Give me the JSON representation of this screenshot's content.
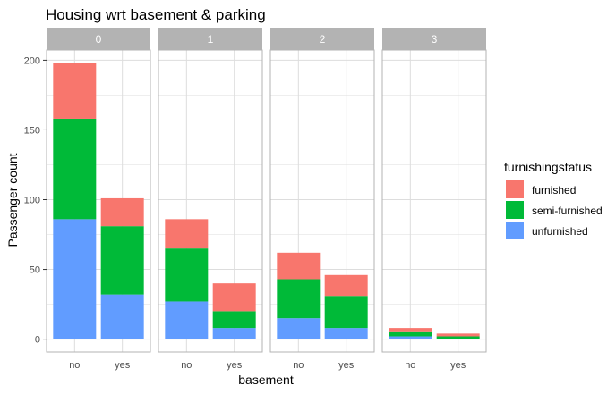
{
  "chart_data": {
    "type": "bar",
    "stacked": true,
    "title": "Housing wrt basement & parking",
    "xlabel": "basement",
    "ylabel": "Passenger count",
    "ylim": [
      0,
      205
    ],
    "yticks": [
      0,
      50,
      100,
      150,
      200
    ],
    "grid": true,
    "legend_position": "right",
    "legend_title": "furnishingstatus",
    "facet_labels": [
      "0",
      "1",
      "2",
      "3"
    ],
    "categories": [
      "no",
      "yes"
    ],
    "series": [
      {
        "name": "furnished",
        "color": "#F8766D",
        "values": [
          [
            40,
            20
          ],
          [
            21,
            20
          ],
          [
            19,
            15
          ],
          [
            3,
            2
          ]
        ]
      },
      {
        "name": "semi-furnished",
        "color": "#00BA38",
        "values": [
          [
            72,
            49
          ],
          [
            38,
            12
          ],
          [
            28,
            23
          ],
          [
            3,
            2
          ]
        ]
      },
      {
        "name": "unfurnished",
        "color": "#619CFF",
        "values": [
          [
            86,
            32
          ],
          [
            27,
            8
          ],
          [
            15,
            8
          ],
          [
            2,
            0
          ]
        ]
      }
    ],
    "stack_order": [
      "unfurnished",
      "semi-furnished",
      "furnished"
    ]
  },
  "colors": {
    "panel_border": "#b3b3b3",
    "grid": "#dddddd",
    "strip_bg": "#b3b3b3"
  }
}
